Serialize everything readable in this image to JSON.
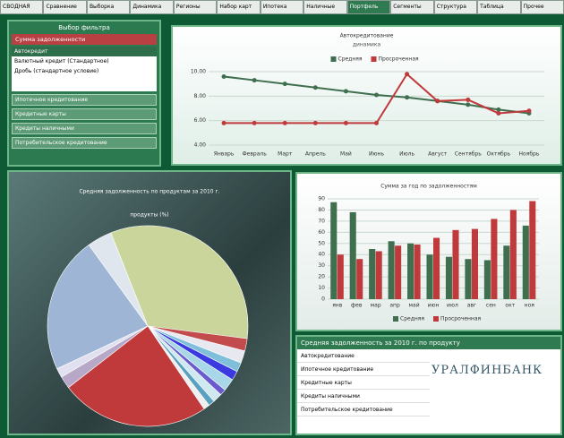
{
  "tabs": [
    "СВОДНАЯ",
    "Сравнение",
    "Выборка",
    "Динамика",
    "Регионы",
    "Набор карт",
    "Ипотека",
    "Наличные",
    "Портфель",
    "Сегменты",
    "Структура",
    "Таблица",
    "Прочее"
  ],
  "filter_panel": {
    "title": "Выбор фильтра",
    "header": "Сумма задолженности",
    "items": [
      "Автокредит",
      "Валютный кредит (Стандартное)",
      "Дробь (стандартное условие)"
    ],
    "buttons": [
      "Ипотечное кредитование",
      "Кредитные карты",
      "Кредиты наличными",
      "Потребительское кредитование"
    ]
  },
  "chart_data": [
    {
      "type": "line",
      "title": "Автокредитование",
      "subtitle": "динамика",
      "categories": [
        "Январь",
        "Февраль",
        "Март",
        "Апрель",
        "Май",
        "Июнь",
        "Июль",
        "Август",
        "Сентябрь",
        "Октябрь",
        "Ноябрь"
      ],
      "series": [
        {
          "name": "Средняя",
          "color": "#3f6f4f",
          "values": [
            9.6,
            9.3,
            9.0,
            8.7,
            8.4,
            8.1,
            7.9,
            7.6,
            7.3,
            6.9,
            6.6
          ]
        },
        {
          "name": "Просроченная",
          "color": "#c0393b",
          "values": [
            5.8,
            5.8,
            5.8,
            5.8,
            5.8,
            5.8,
            9.8,
            7.6,
            7.7,
            6.6,
            6.8
          ]
        }
      ],
      "ylim": [
        4,
        10
      ],
      "yticks": [
        {
          "value": 4,
          "label": "4.00"
        },
        {
          "value": 6,
          "label": "6.00"
        },
        {
          "value": 8,
          "label": "8.00"
        },
        {
          "value": 10,
          "label": "10.00"
        }
      ],
      "grid": true
    },
    {
      "type": "pie",
      "title": "Средняя задолженность по продуктам за 2010 г.",
      "subtitle": "продукты (%)",
      "categories": [
        null,
        null,
        null,
        null,
        null,
        null,
        null,
        null,
        null,
        null,
        null,
        null,
        null,
        null,
        null
      ],
      "values": [
        33,
        2,
        2,
        1.5,
        1.5,
        2,
        1,
        1.5,
        1,
        1,
        24,
        2,
        1.5,
        22,
        4
      ],
      "colors": [
        "#c9d59a",
        "#c24b4e",
        "#e8e8f0",
        "#7fbfd9",
        "#3a3ae0",
        "#a8d8e8",
        "#6a5acd",
        "#d0e8f0",
        "#5aa0c0",
        "#f0f0f0",
        "#c0393b",
        "#b7a8c8",
        "#e0e0f0",
        "#9fb5d6",
        "#dfe6ee"
      ]
    },
    {
      "type": "bar",
      "title": "Сумма за год по задолженностям",
      "categories": [
        "янв",
        "фев",
        "мар",
        "апр",
        "май",
        "июн",
        "июл",
        "авг",
        "сен",
        "окт",
        "ноя"
      ],
      "series": [
        {
          "name": "Средняя",
          "color": "#3f6f4f",
          "values": [
            87,
            78,
            45,
            52,
            50,
            40,
            38,
            36,
            35,
            48,
            66
          ]
        },
        {
          "name": "Просроченная",
          "color": "#c0393b",
          "values": [
            40,
            36,
            43,
            48,
            49,
            55,
            62,
            63,
            72,
            80,
            88
          ]
        }
      ],
      "ylim": [
        0,
        90
      ],
      "yticks": [
        0,
        10,
        20,
        30,
        40,
        50,
        60,
        70,
        80,
        90
      ],
      "grid": true
    }
  ],
  "product_panel": {
    "title": "Средняя задолженность за 2010 г. по продукту",
    "items": [
      "Автокредитование",
      "Ипотечное кредитование",
      "Кредитные карты",
      "Кредиты наличными",
      "Потребительское кредитование"
    ],
    "logo": "УРАЛФИНБАНК"
  }
}
